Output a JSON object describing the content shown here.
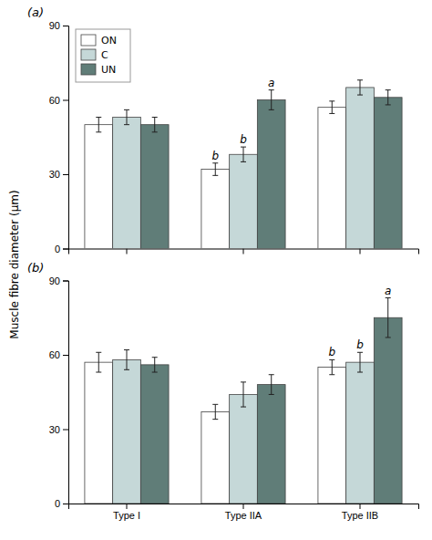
{
  "chart_data": [
    {
      "type": "bar",
      "title": "(a)",
      "ylabel": "Muscle fibre diameter (μm)",
      "categories": [
        null,
        null,
        null
      ],
      "series": [
        {
          "name": "ON",
          "color": "#ffffff",
          "values": [
            50,
            32,
            57
          ],
          "errors": [
            3,
            2.5,
            2.5
          ],
          "annotations": [
            null,
            "b",
            null
          ]
        },
        {
          "name": "C",
          "color": "#c5d8d8",
          "values": [
            53,
            38,
            65
          ],
          "errors": [
            3,
            3,
            3
          ],
          "annotations": [
            null,
            "b",
            null
          ]
        },
        {
          "name": "UN",
          "color": "#607d78",
          "values": [
            50,
            60,
            61
          ],
          "errors": [
            3,
            4,
            3
          ],
          "annotations": [
            null,
            "a",
            null
          ]
        }
      ],
      "ylim": [
        0,
        90
      ],
      "yticks": [
        0,
        30,
        60,
        90
      ],
      "grid": false,
      "legend": "upper left"
    },
    {
      "type": "bar",
      "title": "(b)",
      "categories": [
        "Type I",
        "Type IIA",
        "Type IIB"
      ],
      "series": [
        {
          "name": "ON",
          "color": "#ffffff",
          "values": [
            57,
            37,
            55
          ],
          "errors": [
            4,
            3,
            3
          ],
          "annotations": [
            null,
            null,
            "b"
          ]
        },
        {
          "name": "C",
          "color": "#c5d8d8",
          "values": [
            58,
            44,
            57
          ],
          "errors": [
            4,
            5,
            4
          ],
          "annotations": [
            null,
            null,
            "b"
          ]
        },
        {
          "name": "UN",
          "color": "#607d78",
          "values": [
            56,
            48,
            75
          ],
          "errors": [
            3,
            4,
            8
          ],
          "annotations": [
            null,
            null,
            "a"
          ]
        }
      ],
      "ylim": [
        0,
        90
      ],
      "yticks": [
        0,
        30,
        60,
        90
      ],
      "grid": false
    }
  ]
}
